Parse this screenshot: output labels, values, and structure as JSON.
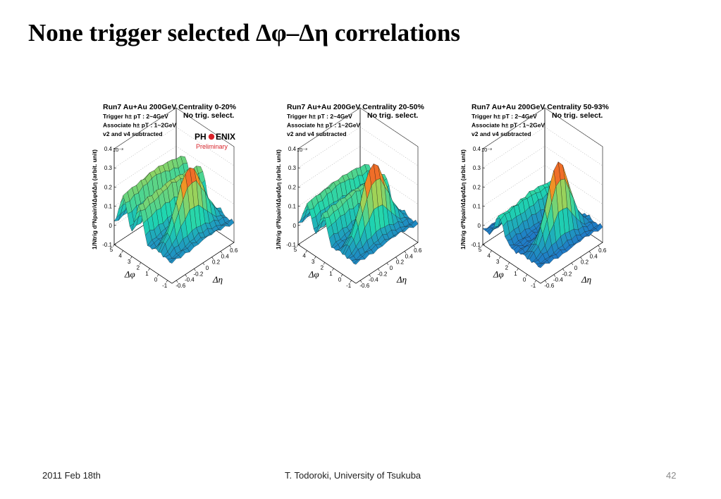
{
  "slide": {
    "title": "None trigger selected Δφ–Δη correlations",
    "footer": {
      "date": "2011 Feb 18th",
      "author": "T. Todoroki, University of Tsukuba",
      "page": "42"
    }
  },
  "logo": {
    "name": "PHENIX",
    "left": "PH",
    "right": "ENIX",
    "sub": "Preliminary",
    "color": "#d8232a"
  },
  "colors": {
    "surface_low": "#1f3fd6",
    "surface_mid": "#1fd6b0",
    "surface_high": "#f0d020",
    "grid": "#000000"
  },
  "chart_data": [
    {
      "type": "surface",
      "title": "Run7 Au+Au 200GeV Centrality 0-20%",
      "annotations": [
        "No trig. select.",
        "Trigger h± pT : 2~4GeV",
        "Associate h± pT : 1~2GeV",
        "v2 and v4 subtracted"
      ],
      "xlabel": "Δφ",
      "ylabel": "Δη",
      "zlabel": "1/Ntrig d²Npair/dΔφdΔη (arbit. unit)",
      "z_multiplier": "10⁻³",
      "x_ticks": [
        "-1",
        "0",
        "1",
        "2",
        "3",
        "4",
        "5"
      ],
      "y_ticks": [
        "-0.6",
        "-0.4",
        "-0.2",
        "0",
        "0.2",
        "0.4",
        "0.6"
      ],
      "z_ticks": [
        "-0.1",
        "0",
        "0.1",
        "0.2",
        "0.3",
        "0.4"
      ],
      "xlim": [
        -1.5,
        5
      ],
      "ylim": [
        -0.7,
        0.7
      ],
      "zlim": [
        -0.1,
        0.4
      ],
      "near_peak": 0.33,
      "near_width_eta": 0.3,
      "away_peak": 0.2,
      "away_shoulder_dphi": [
        2.2,
        4.0
      ],
      "base": 0.04,
      "logo": true
    },
    {
      "type": "surface",
      "title": "Run7 Au+Au 200GeV Centrality 20-50%",
      "annotations": [
        "No trig. select.",
        "Trigger h± pT : 2~4GeV",
        "Associate h± pT : 1~2GeV",
        "v2 and v4 subtracted"
      ],
      "xlabel": "Δφ",
      "ylabel": "Δη",
      "zlabel": "1/Ntrig d²Npair/dΔφdΔη (arbit. unit)",
      "z_multiplier": "10⁻³",
      "x_ticks": [
        "-1",
        "0",
        "1",
        "2",
        "3",
        "4",
        "5"
      ],
      "y_ticks": [
        "-0.6",
        "-0.4",
        "-0.2",
        "0",
        "0.2",
        "0.4",
        "0.6"
      ],
      "z_ticks": [
        "-0.1",
        "0",
        "0.1",
        "0.2",
        "0.3",
        "0.4"
      ],
      "xlim": [
        -1.5,
        5
      ],
      "ylim": [
        -0.7,
        0.7
      ],
      "zlim": [
        -0.1,
        0.4
      ],
      "near_peak": 0.36,
      "near_width_eta": 0.28,
      "away_peak": 0.16,
      "away_shoulder_dphi": [
        2.2,
        4.0
      ],
      "base": 0.03,
      "logo": false
    },
    {
      "type": "surface",
      "title": "Run7 Au+Au 200GeV Centrality 50-93%",
      "annotations": [
        "No trig. select.",
        "Trigger h± pT : 2~4GeV",
        "Associate h± pT : 1~2GeV",
        "v2 and v4 subtracted"
      ],
      "xlabel": "Δφ",
      "ylabel": "Δη",
      "zlabel": "1/Ntrig d²Npair/dΔφdΔη (arbit. unit)",
      "z_multiplier": "10⁻³",
      "x_ticks": [
        "-1",
        "0",
        "1",
        "2",
        "3",
        "4",
        "5"
      ],
      "y_ticks": [
        "-0.6",
        "-0.4",
        "-0.2",
        "0",
        "0.2",
        "0.4",
        "0.6"
      ],
      "z_ticks": [
        "-0.1",
        "0",
        "0.1",
        "0.2",
        "0.3",
        "0.4"
      ],
      "xlim": [
        -1.5,
        5
      ],
      "ylim": [
        -0.7,
        0.7
      ],
      "zlim": [
        -0.1,
        0.4
      ],
      "near_peak": 0.4,
      "near_width_eta": 0.25,
      "away_peak": 0.14,
      "away_shoulder_dphi": [
        3.14,
        3.14
      ],
      "base": 0.0,
      "logo": false
    }
  ]
}
